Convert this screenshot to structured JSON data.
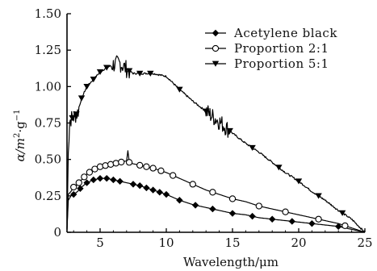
{
  "chart_data": {
    "type": "line",
    "xlabel": "Wavelength/μm",
    "ylabel_parts": [
      "α/m",
      "2",
      "·g",
      "−1"
    ],
    "xlim": [
      2.5,
      25
    ],
    "ylim": [
      0,
      1.5
    ],
    "x_ticks": [
      5,
      10,
      15,
      20,
      25
    ],
    "x_tick_labels": [
      "5",
      "10",
      "15",
      "20",
      "25"
    ],
    "y_ticks": [
      0,
      0.25,
      0.5,
      0.75,
      1.0,
      1.25,
      1.5
    ],
    "y_tick_labels": [
      "0",
      "0.25",
      "0.50",
      "0.75",
      "1.00",
      "1.25",
      "1.50"
    ],
    "legend_position": "top-right",
    "grid": false,
    "series": [
      {
        "name": "Acetylene black",
        "marker": "diamond-filled",
        "color": "#000000",
        "x": [
          2.5,
          2.6,
          2.8,
          3.0,
          3.3,
          3.6,
          4.0,
          4.5,
          5.0,
          5.5,
          6.0,
          6.5,
          7.0,
          7.5,
          8.0,
          9.0,
          10.0,
          11.0,
          12.0,
          13.0,
          14.0,
          15.0,
          16.0,
          17.0,
          18.0,
          19.0,
          20.0,
          21.0,
          22.0,
          23.0,
          24.0,
          25.0
        ],
        "y": [
          0.02,
          0.22,
          0.25,
          0.26,
          0.28,
          0.31,
          0.34,
          0.36,
          0.37,
          0.37,
          0.36,
          0.35,
          0.34,
          0.33,
          0.32,
          0.29,
          0.26,
          0.22,
          0.19,
          0.17,
          0.15,
          0.13,
          0.12,
          0.1,
          0.09,
          0.08,
          0.07,
          0.06,
          0.05,
          0.04,
          0.02,
          0.0
        ],
        "marker_x": [
          3.0,
          3.5,
          4.0,
          4.5,
          5.0,
          5.5,
          6.0,
          6.5,
          7.5,
          8.0,
          8.5,
          9.0,
          9.5,
          10.0,
          11.0,
          12.2,
          13.5,
          15.0,
          16.5,
          18.0,
          19.5,
          21.0,
          23.0
        ]
      },
      {
        "name": "Proportion 2:1",
        "marker": "circle-open",
        "color": "#000000",
        "x": [
          2.5,
          2.6,
          2.8,
          3.0,
          3.3,
          3.6,
          4.0,
          4.5,
          5.0,
          5.5,
          6.0,
          6.5,
          7.0,
          7.1,
          7.2,
          7.5,
          8.0,
          9.0,
          10.0,
          11.0,
          12.0,
          13.0,
          14.0,
          15.0,
          16.0,
          17.0,
          18.0,
          19.0,
          20.0,
          21.0,
          22.0,
          23.0,
          24.0,
          25.0
        ],
        "y": [
          0.03,
          0.26,
          0.28,
          0.31,
          0.33,
          0.36,
          0.4,
          0.43,
          0.45,
          0.46,
          0.47,
          0.48,
          0.49,
          0.56,
          0.48,
          0.47,
          0.46,
          0.44,
          0.41,
          0.37,
          0.33,
          0.29,
          0.26,
          0.23,
          0.21,
          0.18,
          0.16,
          0.14,
          0.12,
          0.1,
          0.08,
          0.06,
          0.03,
          0.0
        ],
        "marker_x": [
          3.0,
          3.4,
          3.8,
          4.2,
          4.6,
          5.0,
          5.4,
          5.8,
          6.2,
          6.6,
          7.2,
          8.0,
          8.5,
          9.0,
          9.6,
          10.5,
          12.0,
          13.5,
          15.0,
          17.0,
          19.0,
          21.5,
          23.5
        ]
      },
      {
        "name": "Proportion 5:1",
        "marker": "triangle-down-filled",
        "color": "#000000",
        "x": [
          2.5,
          2.6,
          2.7,
          2.8,
          3.0,
          3.3,
          3.6,
          4.0,
          4.5,
          5.0,
          5.5,
          6.0,
          6.5,
          7.0,
          7.5,
          8.0,
          8.5,
          9.0,
          9.5,
          10.0,
          11.0,
          12.0,
          13.0,
          14.0,
          15.0,
          16.0,
          17.0,
          18.0,
          19.0,
          20.0,
          21.0,
          22.0,
          23.0,
          24.0,
          25.0
        ],
        "y": [
          0.02,
          0.55,
          0.76,
          0.78,
          0.79,
          0.82,
          0.92,
          1.0,
          1.05,
          1.1,
          1.13,
          1.15,
          1.16,
          1.12,
          1.09,
          1.09,
          1.09,
          1.09,
          1.08,
          1.07,
          0.98,
          0.9,
          0.83,
          0.76,
          0.68,
          0.61,
          0.55,
          0.48,
          0.41,
          0.35,
          0.28,
          0.22,
          0.15,
          0.09,
          0.0
        ],
        "marker_x": [
          2.9,
          3.2,
          3.6,
          4.0,
          4.5,
          5.0,
          5.5,
          7.2,
          8.0,
          8.8,
          11.0,
          13.0,
          14.8,
          16.5,
          18.5,
          20.0,
          21.5,
          23.3
        ],
        "noise_regions": [
          [
            2.6,
            3.4
          ],
          [
            5.8,
            7.2
          ],
          [
            13.0,
            14.8
          ]
        ]
      }
    ]
  }
}
